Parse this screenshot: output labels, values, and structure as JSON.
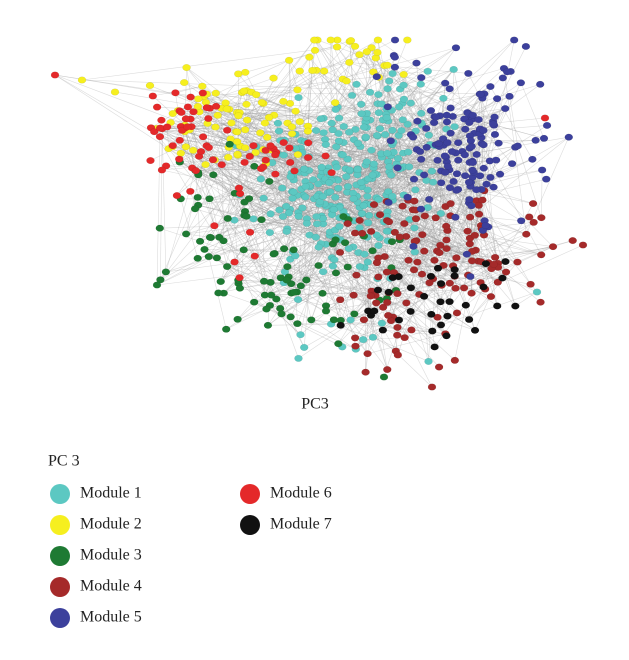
{
  "caption": "PC3",
  "legend": {
    "title": "PC 3",
    "items": [
      {
        "label": "Module 1",
        "color": "#5cc8c2"
      },
      {
        "label": "Module 2",
        "color": "#f6ef1f"
      },
      {
        "label": "Module 3",
        "color": "#1e7a33"
      },
      {
        "label": "Module 4",
        "color": "#a52a2a"
      },
      {
        "label": "Module 5",
        "color": "#3c409c"
      },
      {
        "label": "Module 6",
        "color": "#e4292a"
      },
      {
        "label": "Module 7",
        "color": "#111111"
      }
    ]
  }
}
